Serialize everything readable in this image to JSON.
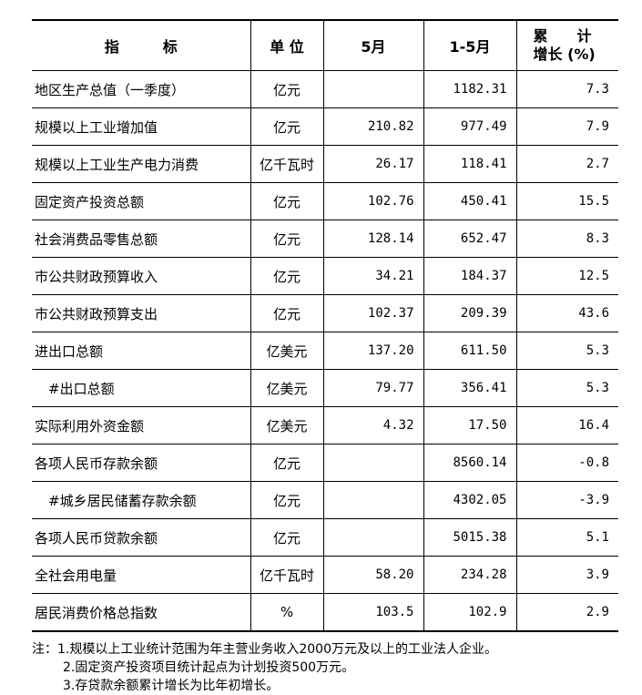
{
  "header": {
    "indicator": "指　　　标",
    "unit": "单 位",
    "month": "5月",
    "cumulative": "1-5月",
    "growth_line1": "累　　计",
    "growth_line2": "增长 (%)"
  },
  "rows": [
    {
      "name": "地区生产总值（一季度）",
      "unit": "亿元",
      "month": "",
      "cum": "1182.31",
      "growth": "7.3"
    },
    {
      "name": "规模以上工业增加值",
      "unit": "亿元",
      "month": "210.82",
      "cum": "977.49",
      "growth": "7.9"
    },
    {
      "name": "规模以上工业生产电力消费",
      "unit": "亿千瓦时",
      "month": "26.17",
      "cum": "118.41",
      "growth": "2.7"
    },
    {
      "name": "固定资产投资总额",
      "unit": "亿元",
      "month": "102.76",
      "cum": "450.41",
      "growth": "15.5"
    },
    {
      "name": "社会消费品零售总额",
      "unit": "亿元",
      "month": "128.14",
      "cum": "652.47",
      "growth": "8.3"
    },
    {
      "name": "市公共财政预算收入",
      "unit": "亿元",
      "month": "34.21",
      "cum": "184.37",
      "growth": "12.5"
    },
    {
      "name": "市公共财政预算支出",
      "unit": "亿元",
      "month": "102.37",
      "cum": "209.39",
      "growth": "43.6"
    },
    {
      "name": "进出口总额",
      "unit": "亿美元",
      "month": "137.20",
      "cum": "611.50",
      "growth": "5.3"
    },
    {
      "name": "　#出口总额",
      "unit": "亿美元",
      "month": "79.77",
      "cum": "356.41",
      "growth": "5.3"
    },
    {
      "name": "实际利用外资金额",
      "unit": "亿美元",
      "month": "4.32",
      "cum": "17.50",
      "growth": "16.4"
    },
    {
      "name": "各项人民币存款余额",
      "unit": "亿元",
      "month": "",
      "cum": "8560.14",
      "growth": "-0.8"
    },
    {
      "name": "　#城乡居民储蓄存款余额",
      "unit": "亿元",
      "month": "",
      "cum": "4302.05",
      "growth": "-3.9"
    },
    {
      "name": "各项人民币贷款余额",
      "unit": "亿元",
      "month": "",
      "cum": "5015.38",
      "growth": "5.1"
    },
    {
      "name": "全社会用电量",
      "unit": "亿千瓦时",
      "month": "58.20",
      "cum": "234.28",
      "growth": "3.9"
    },
    {
      "name": "居民消费价格总指数",
      "unit": "%",
      "month": "103.5",
      "cum": "102.9",
      "growth": "2.9"
    }
  ],
  "notes": [
    "注：1.规模以上工业统计范围为年主营业务收入2000万元及以上的工业法人企业。",
    "2.固定资产投资项目统计起点为计划投资500万元。",
    "3.存贷款余额累计增长为比年初增长。"
  ]
}
